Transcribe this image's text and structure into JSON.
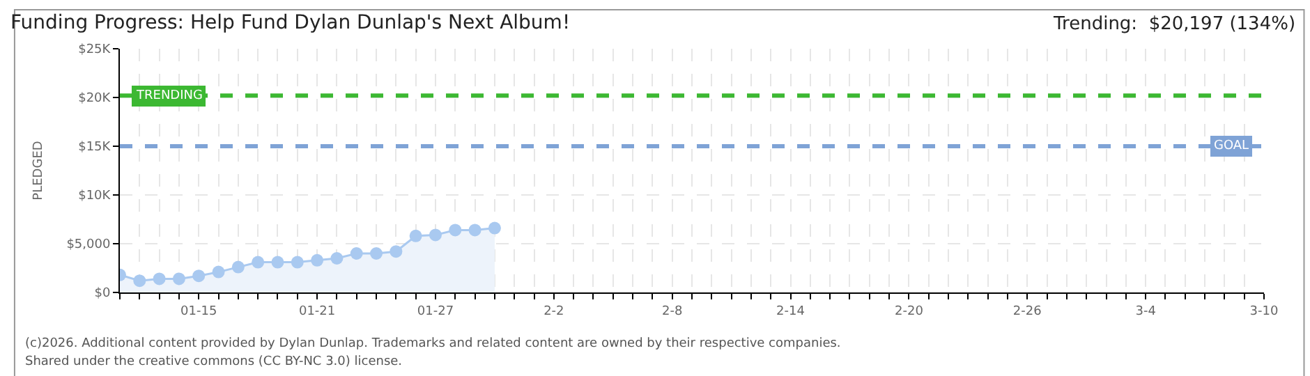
{
  "chart_data": {
    "type": "area",
    "title": "Funding Progress: Help Fund Dylan Dunlap's Next Album!",
    "annotations": [
      "Trending:  $20,197 (134%)",
      "(c)2026. Additional content provided by Dylan Dunlap. Trademarks and related content are owned by their respective companies.",
      "Shared under the creative commons (CC BY-NC 3.0) license."
    ],
    "ylabel": "PLEDGED",
    "x": [
      "2026-01-11",
      "2026-01-12",
      "2026-01-13",
      "2026-01-14",
      "2026-01-15",
      "2026-01-16",
      "2026-01-17",
      "2026-01-18",
      "2026-01-19",
      "2026-01-20",
      "2026-01-21",
      "2026-01-22",
      "2026-01-23",
      "2026-01-24",
      "2026-01-25",
      "2026-01-26",
      "2026-01-27",
      "2026-01-28",
      "2026-01-29",
      "2026-01-30"
    ],
    "series": [
      {
        "color": "#a9c9f0",
        "values": [
          1800,
          1200,
          1400,
          1400,
          1700,
          2100,
          2600,
          3100,
          3100,
          3100,
          3300,
          3500,
          4000,
          4000,
          4200,
          5800,
          5900,
          6400,
          6400,
          6600
        ]
      }
    ],
    "xlim": [
      "2026-01-11",
      "2026-03-10"
    ],
    "xticks": [
      {
        "value": "2026-01-11",
        "label": null
      },
      {
        "value": "2026-01-12",
        "label": null
      },
      {
        "value": "2026-01-13",
        "label": null
      },
      {
        "value": "2026-01-14",
        "label": null
      },
      {
        "value": "2026-01-15",
        "label": "01-15"
      },
      {
        "value": "2026-01-16",
        "label": null
      },
      {
        "value": "2026-01-17",
        "label": null
      },
      {
        "value": "2026-01-18",
        "label": null
      },
      {
        "value": "2026-01-19",
        "label": null
      },
      {
        "value": "2026-01-20",
        "label": null
      },
      {
        "value": "2026-01-21",
        "label": "01-21"
      },
      {
        "value": "2026-01-22",
        "label": null
      },
      {
        "value": "2026-01-23",
        "label": null
      },
      {
        "value": "2026-01-24",
        "label": null
      },
      {
        "value": "2026-01-25",
        "label": null
      },
      {
        "value": "2026-01-26",
        "label": null
      },
      {
        "value": "2026-01-27",
        "label": "01-27"
      },
      {
        "value": "2026-01-28",
        "label": null
      },
      {
        "value": "2026-01-29",
        "label": null
      },
      {
        "value": "2026-01-30",
        "label": null
      },
      {
        "value": "2026-01-31",
        "label": null
      },
      {
        "value": "2026-02-01",
        "label": null
      },
      {
        "value": "2026-02-02",
        "label": "2-2"
      },
      {
        "value": "2026-02-03",
        "label": null
      },
      {
        "value": "2026-02-04",
        "label": null
      },
      {
        "value": "2026-02-05",
        "label": null
      },
      {
        "value": "2026-02-06",
        "label": null
      },
      {
        "value": "2026-02-07",
        "label": null
      },
      {
        "value": "2026-02-08",
        "label": "2-8"
      },
      {
        "value": "2026-02-09",
        "label": null
      },
      {
        "value": "2026-02-10",
        "label": null
      },
      {
        "value": "2026-02-11",
        "label": null
      },
      {
        "value": "2026-02-12",
        "label": null
      },
      {
        "value": "2026-02-13",
        "label": null
      },
      {
        "value": "2026-02-14",
        "label": "2-14"
      },
      {
        "value": "2026-02-15",
        "label": null
      },
      {
        "value": "2026-02-16",
        "label": null
      },
      {
        "value": "2026-02-17",
        "label": null
      },
      {
        "value": "2026-02-18",
        "label": null
      },
      {
        "value": "2026-02-19",
        "label": null
      },
      {
        "value": "2026-02-20",
        "label": "2-20"
      },
      {
        "value": "2026-02-21",
        "label": null
      },
      {
        "value": "2026-02-22",
        "label": null
      },
      {
        "value": "2026-02-23",
        "label": null
      },
      {
        "value": "2026-02-24",
        "label": null
      },
      {
        "value": "2026-02-25",
        "label": null
      },
      {
        "value": "2026-02-26",
        "label": "2-26"
      },
      {
        "value": "2026-02-27",
        "label": null
      },
      {
        "value": "2026-02-28",
        "label": null
      },
      {
        "value": "2026-03-01",
        "label": null
      },
      {
        "value": "2026-03-02",
        "label": null
      },
      {
        "value": "2026-03-03",
        "label": null
      },
      {
        "value": "2026-03-04",
        "label": "3-4"
      },
      {
        "value": "2026-03-05",
        "label": null
      },
      {
        "value": "2026-03-06",
        "label": null
      },
      {
        "value": "2026-03-07",
        "label": null
      },
      {
        "value": "2026-03-08",
        "label": null
      },
      {
        "value": "2026-03-09",
        "label": null
      },
      {
        "value": "2026-03-10",
        "label": "3-10"
      }
    ],
    "ylim": [
      0,
      25000
    ],
    "yticks": [
      {
        "value": 0,
        "label": "$0"
      },
      {
        "value": 5000,
        "label": "$5,000"
      },
      {
        "value": 10000,
        "label": "$10K"
      },
      {
        "value": 15000,
        "label": "$15K"
      },
      {
        "value": 20000,
        "label": "$20K"
      },
      {
        "value": 25000,
        "label": "$25K"
      }
    ],
    "ref_lines": [
      {
        "axis": "y",
        "value": 20197,
        "label": "TRENDING",
        "color": "#3cb832",
        "line_style": "dashed"
      },
      {
        "axis": "y",
        "value": 15000,
        "label": "GOAL",
        "color": "#7fa3d6",
        "line_style": "dashed"
      }
    ],
    "grid": true,
    "marker": "circle"
  }
}
